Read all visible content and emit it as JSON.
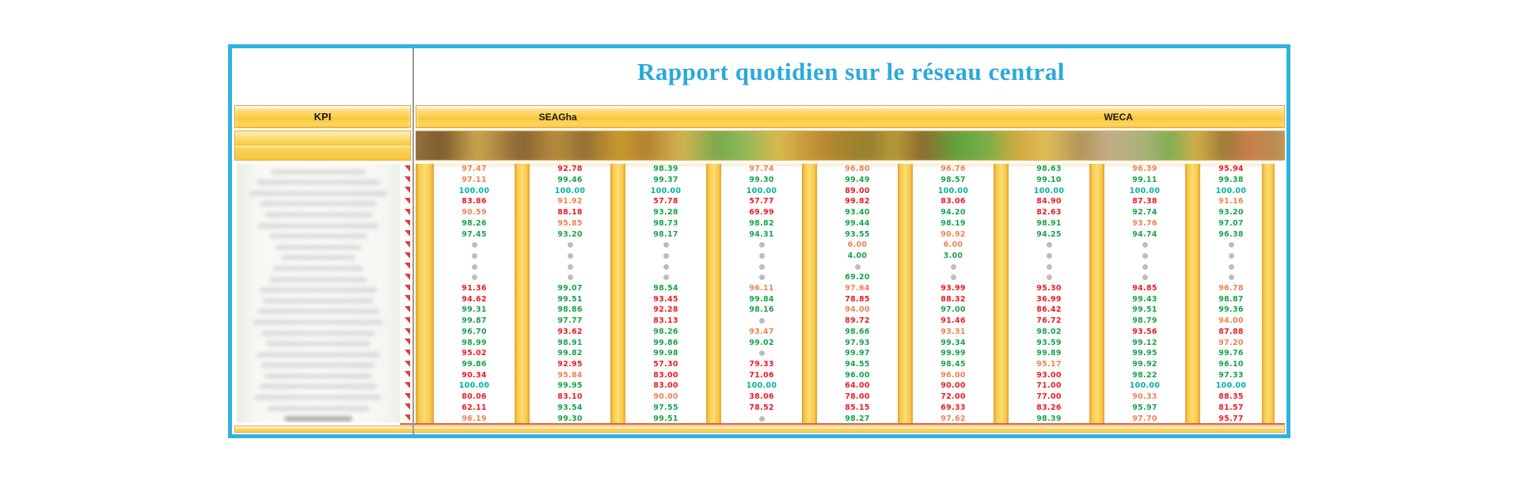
{
  "title": "Rapport quotidien sur le réseau central",
  "kpi_header": "KPI",
  "sections": [
    {
      "label": "SEAGha"
    },
    {
      "label": "WECA"
    }
  ],
  "colors": {
    "accent_border": "#2fb2e2",
    "title_text": "#29aadc",
    "value_red": "#ee1c25",
    "value_green": "#17a54d",
    "value_orange": "#ef8352",
    "value_teal": "#00b2a0",
    "dot_gray": "#bdbdbd",
    "marker_red": "#e53935"
  },
  "table": {
    "row_count": 24,
    "note_markers_per_row": true,
    "columns": [
      {
        "section": "SEAGha",
        "values": [
          "97.47|o",
          "97.11|o",
          "100.00|t",
          "83.86|r",
          "90.59|o",
          "98.26|g",
          "97.45|g",
          null,
          null,
          null,
          null,
          "91.36|r",
          "94.62|r",
          "99.31|g",
          "99.87|g",
          "96.70|g",
          "98.99|g",
          "95.02|r",
          "99.86|g",
          "90.34|r",
          "100.00|t",
          "80.06|r",
          "62.11|r",
          "96.19|o"
        ]
      },
      {
        "section": "SEAGha",
        "values": [
          "92.78|r",
          "99.46|g",
          "100.00|t",
          "91.92|o",
          "88.18|r",
          "95.85|o",
          "93.20|g",
          null,
          null,
          null,
          null,
          "99.07|g",
          "99.51|g",
          "98.86|g",
          "97.77|g",
          "93.62|r",
          "98.91|g",
          "99.82|g",
          "92.95|r",
          "95.84|o",
          "99.95|g",
          "83.10|r",
          "93.54|g",
          "99.30|g"
        ]
      },
      {
        "section": "SEAGha",
        "values": [
          "98.39|g",
          "99.37|g",
          "100.00|t",
          "57.78|r",
          "93.28|g",
          "98.73|g",
          "98.17|g",
          null,
          null,
          null,
          null,
          "98.54|g",
          "93.45|r",
          "92.28|r",
          "83.13|r",
          "98.26|g",
          "99.86|g",
          "99.98|g",
          "57.30|r",
          "83.00|r",
          "83.00|r",
          "90.00|o",
          "97.55|g",
          "99.51|g"
        ]
      },
      {
        "section": "SEAGha",
        "values": [
          "97.74|o",
          "99.30|g",
          "100.00|t",
          "57.77|r",
          "69.99|r",
          "98.82|g",
          "94.31|g",
          null,
          null,
          null,
          null,
          "96.11|o",
          "99.84|g",
          "98.16|g",
          null,
          "93.47|o",
          "99.02|g",
          null,
          "79.33|r",
          "71.06|r",
          "100.00|t",
          "38.06|r",
          "78.52|r",
          null
        ]
      },
      {
        "section": "SEAGha",
        "values": [
          "96.80|o",
          "99.49|g",
          "89.00|r",
          "99.82|r",
          "93.40|g",
          "99.44|g",
          "93.55|g",
          "6.00|o",
          "4.00|g",
          null,
          "69.20|g",
          "97.64|o",
          "78.85|r",
          "94.00|o",
          "89.72|r",
          "98.66|g",
          "97.93|g",
          "99.97|g",
          "94.55|g",
          "96.00|g",
          "64.00|r",
          "78.00|r",
          "85.15|r",
          "98.27|g"
        ]
      },
      {
        "section": "WECA",
        "values": [
          "96.76|o",
          "98.57|g",
          "100.00|t",
          "83.06|r",
          "94.20|g",
          "98.19|g",
          "90.92|o",
          "6.00|o",
          "3.00|g",
          null,
          null,
          "93.99|r",
          "88.32|r",
          "97.00|g",
          "91.46|r",
          "93.31|o",
          "99.34|g",
          "99.99|g",
          "98.45|g",
          "96.00|o",
          "90.00|r",
          "72.00|r",
          "69.33|r",
          "97.62|o"
        ]
      },
      {
        "section": "WECA",
        "values": [
          "98.63|g",
          "99.10|g",
          "100.00|t",
          "84.90|r",
          "82.63|r",
          "98.91|g",
          "94.25|g",
          null,
          null,
          null,
          null,
          "95.30|r",
          "36.99|r",
          "86.42|r",
          "76.72|r",
          "98.02|g",
          "93.59|g",
          "99.89|g",
          "95.17|o",
          "93.00|r",
          "71.00|r",
          "77.00|r",
          "83.26|r",
          "98.39|g"
        ]
      },
      {
        "section": "WECA",
        "values": [
          "96.39|o",
          "99.11|g",
          "100.00|t",
          "87.38|r",
          "92.74|g",
          "93.76|o",
          "94.74|g",
          null,
          null,
          null,
          null,
          "94.85|r",
          "99.43|g",
          "99.51|g",
          "98.79|g",
          "93.56|r",
          "99.12|g",
          "99.95|g",
          "99.92|g",
          "98.22|g",
          "100.00|t",
          "90.33|o",
          "95.97|g",
          "97.70|o"
        ]
      },
      {
        "section": "WECA",
        "values": [
          "95.94|r",
          "99.38|g",
          "100.00|t",
          "91.16|o",
          "93.20|g",
          "97.07|g",
          "96.38|g",
          null,
          null,
          null,
          null,
          "96.78|o",
          "98.87|g",
          "99.36|g",
          "94.00|o",
          "87.88|r",
          "97.20|o",
          "99.76|g",
          "96.10|g",
          "97.33|g",
          "100.00|t",
          "88.35|r",
          "81.57|r",
          "95.77|r"
        ]
      }
    ]
  }
}
